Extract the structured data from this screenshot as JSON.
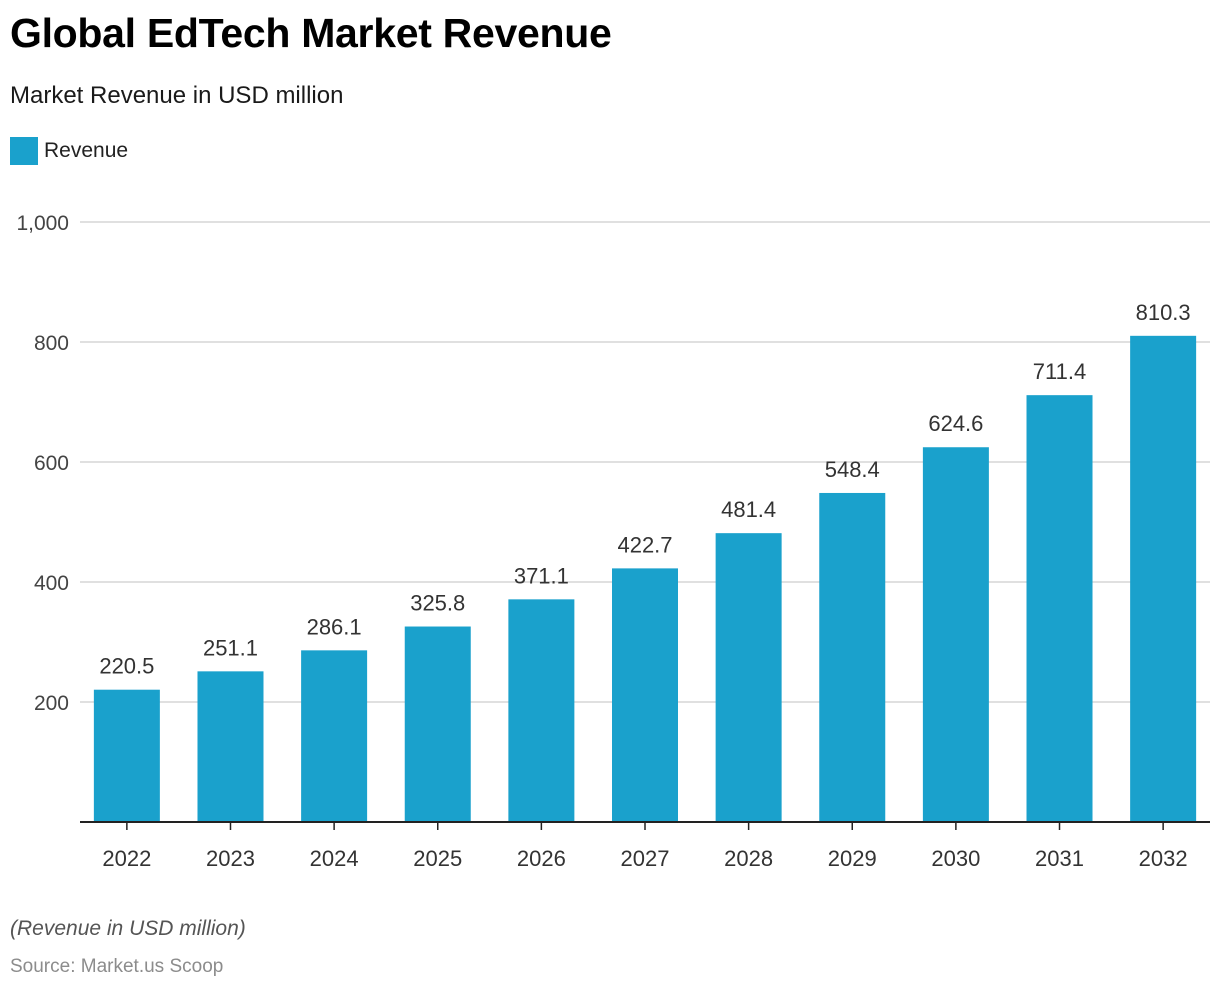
{
  "chart_data": {
    "type": "bar",
    "title": "Global EdTech Market Revenue",
    "subtitle": "Market Revenue in USD million",
    "categories": [
      "2022",
      "2023",
      "2024",
      "2025",
      "2026",
      "2027",
      "2028",
      "2029",
      "2030",
      "2031",
      "2032"
    ],
    "series": [
      {
        "name": "Revenue",
        "color": "#1aa1cc",
        "values": [
          220.5,
          251.1,
          286.1,
          325.8,
          371.1,
          422.7,
          481.4,
          548.4,
          624.6,
          711.4,
          810.3
        ],
        "labels": [
          "220.5",
          "251.1",
          "286.1",
          "325.8",
          "371.1",
          "422.7",
          "481.4",
          "548.4",
          "624.6",
          "711.4",
          "810.3"
        ]
      }
    ],
    "ylim": [
      0,
      1000
    ],
    "yticks": [
      200,
      400,
      600,
      800,
      1000
    ],
    "ytick_labels": [
      "200",
      "400",
      "600",
      "800",
      "1,000"
    ],
    "grid": true,
    "legend_position": "top-left",
    "xlabel": "",
    "ylabel": ""
  },
  "footnote": "(Revenue in USD million)",
  "source": "Source: Market.us Scoop"
}
